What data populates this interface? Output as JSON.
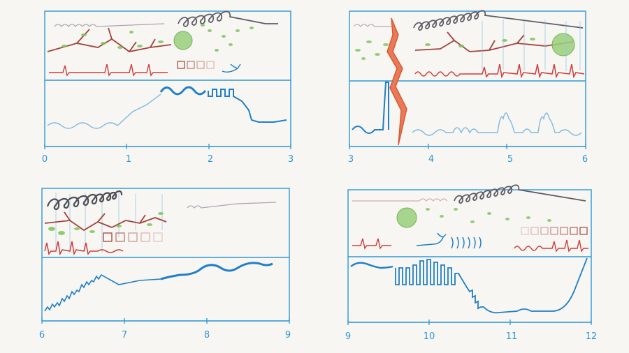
{
  "colors": {
    "paper": "#f7f6f2",
    "frame_blue": "#2f97d6",
    "signal_blue": "#1f7fc9",
    "heart_red": "#cf3b3b",
    "branch_brown": "#a5413a",
    "leaf_green": "#7cc45a",
    "coil_gray": "#5d5d66",
    "lightning_orange": "#d9552f"
  },
  "panels": [
    {
      "id": "p1",
      "axis_ticks": [
        "0",
        "1",
        "2",
        "3"
      ]
    },
    {
      "id": "p2",
      "axis_ticks": [
        "3",
        "4",
        "5",
        "6"
      ]
    },
    {
      "id": "p3",
      "axis_ticks": [
        "6",
        "7",
        "8",
        "9"
      ]
    },
    {
      "id": "p4",
      "axis_ticks": [
        "9",
        "10",
        "11",
        "12"
      ]
    }
  ],
  "icons": [
    "coil-icon",
    "branch-icon",
    "leaf-cluster-icon",
    "heartbeat-icon",
    "square-icon",
    "bird-icon",
    "lightning-icon",
    "sound-wave-icon"
  ]
}
